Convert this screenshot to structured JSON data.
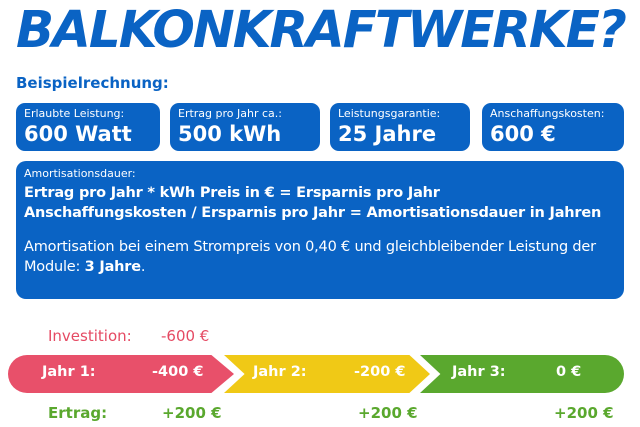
{
  "title": "BALKONKRAFTWERKE?",
  "subtitle": "Beispielrechnung:",
  "cards": [
    {
      "label": "Erlaubte Leistung:",
      "value": "600 Watt"
    },
    {
      "label": "Ertrag pro Jahr ca.:",
      "value": "500 kWh"
    },
    {
      "label": "Leistungsgarantie:",
      "value": "25 Jahre"
    },
    {
      "label": "Anschaffungskosten:",
      "value": "600 €"
    }
  ],
  "amortisation": {
    "label": "Amortisationsdauer:",
    "formula1": "Ertrag pro Jahr * kWh Preis in € = Ersparnis pro Jahr",
    "formula2": "Anschaffungskosten / Ersparnis pro Jahr = Amortisationsdauer in Jahren",
    "note": "Amortisation bei einem Strompreis von 0,40 € und gleichbleibender Leistung der Module:",
    "note_emphasis": "3 Jahre",
    "note_end": "."
  },
  "investition": {
    "label": "Investition:",
    "value": "-600 €"
  },
  "timeline": [
    {
      "label": "Jahr 1:",
      "value": "-400 €",
      "color": "#e8506a"
    },
    {
      "label": "Jahr 2:",
      "value": "-200 €",
      "color": "#f0c916"
    },
    {
      "label": "Jahr 3:",
      "value": "0 €",
      "color": "#5aa82e"
    }
  ],
  "ertrag": {
    "label": "Ertrag:",
    "values": [
      "+200 €",
      "+200 €",
      "+200 €"
    ]
  },
  "colors": {
    "primary": "#0a63c4",
    "investment": "#e54a63",
    "ertrag": "#5aa82e"
  }
}
